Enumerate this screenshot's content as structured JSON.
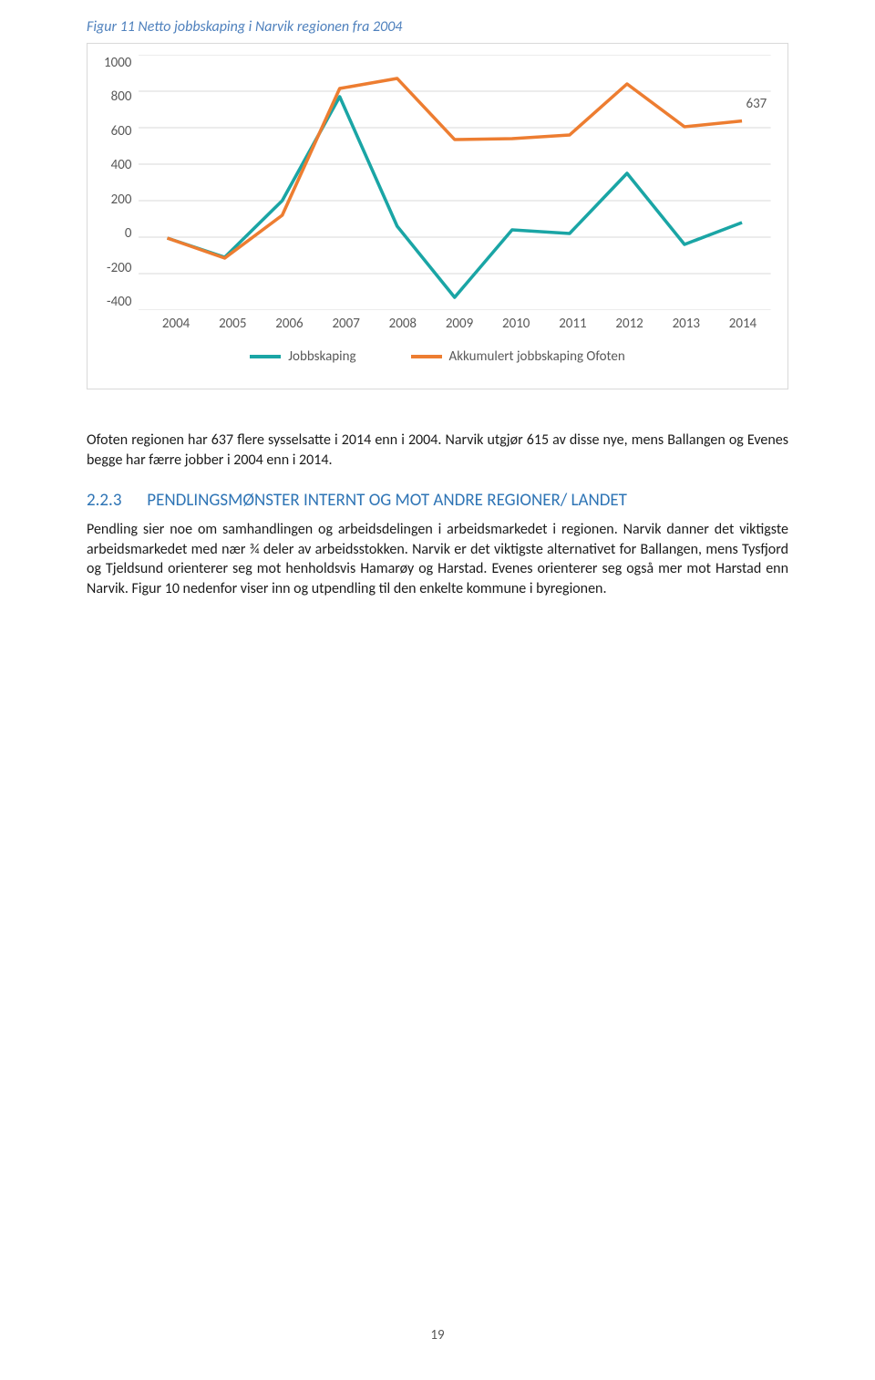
{
  "figure": {
    "title": "Figur 11 Netto jobbskaping i Narvik regionen fra 2004",
    "type": "line",
    "xlim": [
      2004,
      2014
    ],
    "ylim": [
      -400,
      1000
    ],
    "ytick_step": 200,
    "y_ticks": [
      "1000",
      "800",
      "600",
      "400",
      "200",
      "0",
      "-200",
      "-400"
    ],
    "x_labels": [
      "2004",
      "2005",
      "2006",
      "2007",
      "2008",
      "2009",
      "2010",
      "2011",
      "2012",
      "2013",
      "2014"
    ],
    "annotation_value": "637",
    "series": [
      {
        "name": "Jobbskaping",
        "color": "#1aa5a5",
        "line_width": 3.5,
        "marker": "none",
        "values": [
          -5,
          -110,
          200,
          770,
          60,
          -330,
          40,
          20,
          350,
          -40,
          80
        ]
      },
      {
        "name": "Akkumulert jobbskaping Ofoten",
        "color": "#ed7d31",
        "line_width": 3.5,
        "marker": "none",
        "values": [
          -5,
          -115,
          120,
          815,
          870,
          535,
          540,
          560,
          840,
          605,
          637
        ]
      }
    ],
    "grid_color": "#d9d9d9",
    "background_color": "#ffffff",
    "axis_font_color": "#595959",
    "axis_font_size": 15,
    "legend_position": "bottom-center"
  },
  "paragraph1": "Ofoten regionen har 637 flere sysselsatte i 2014 enn i 2004. Narvik utgjør 615 av disse nye, mens Ballangen og Evenes begge har færre jobber i 2004 enn i 2014.",
  "section": {
    "number": "2.2.3",
    "title": "PENDLINGSMØNSTER INTERNT OG MOT ANDRE REGIONER/ LANDET"
  },
  "paragraph2": "Pendling sier noe om samhandlingen og arbeidsdelingen i arbeidsmarkedet i regionen. Narvik danner det viktigste arbeidsmarkedet med nær ¾ deler av arbeidsstokken. Narvik er det viktigste alternativet for Ballangen, mens Tysfjord og Tjeldsund orienterer seg mot henholdsvis Hamarøy og Harstad. Evenes orienterer seg også mer mot Harstad enn Narvik.  Figur 10 nedenfor viser inn og utpendling til den enkelte kommune i byregionen.",
  "page_number": "19"
}
